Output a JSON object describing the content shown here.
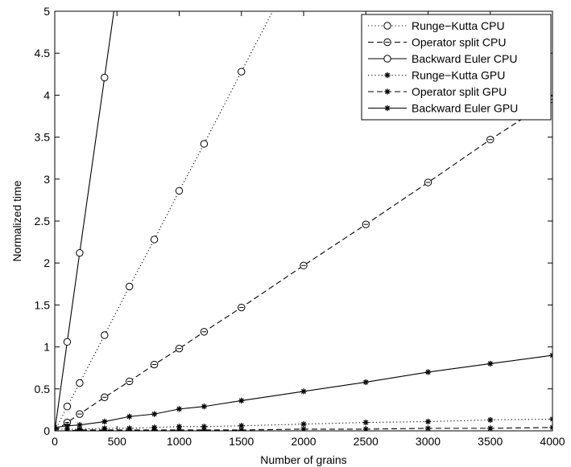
{
  "chart_data": {
    "type": "line",
    "title": "",
    "xlabel": "Number of grains",
    "ylabel": "Normalized time",
    "xlim": [
      0,
      4000
    ],
    "ylim": [
      0,
      5
    ],
    "xticks": [
      0,
      500,
      1000,
      1500,
      2000,
      2500,
      3000,
      3500,
      4000
    ],
    "yticks": [
      0,
      0.5,
      1,
      1.5,
      2,
      2.5,
      3,
      3.5,
      4,
      4.5,
      5
    ],
    "xtick_labels": [
      "0",
      "500",
      "1000",
      "1500",
      "2000",
      "2500",
      "3000",
      "3500",
      "4000"
    ],
    "ytick_labels": [
      "0",
      "0.5",
      "1",
      "1.5",
      "2",
      "2.5",
      "3",
      "3.5",
      "4",
      "4.5",
      "5"
    ],
    "grid": false,
    "legend_position": "top-right",
    "series": [
      {
        "name": "Runge−Kutta CPU",
        "line": "dotted",
        "marker": "circle",
        "x": [
          0,
          100,
          200,
          400,
          600,
          800,
          1000,
          1200,
          1500,
          1800
        ],
        "y": [
          0,
          0.29,
          0.57,
          1.14,
          1.72,
          2.28,
          2.86,
          3.42,
          4.28,
          5.14
        ]
      },
      {
        "name": "Operator split CPU",
        "line": "dashed",
        "marker": "circle-dot",
        "x": [
          0,
          100,
          200,
          400,
          600,
          800,
          1000,
          1200,
          1500,
          2000,
          2500,
          3000,
          3500,
          4000
        ],
        "y": [
          0,
          0.1,
          0.2,
          0.4,
          0.59,
          0.79,
          0.98,
          1.18,
          1.47,
          1.97,
          2.46,
          2.96,
          3.47,
          3.95
        ]
      },
      {
        "name": "Backward Euler CPU",
        "line": "solid",
        "marker": "circle",
        "x": [
          0,
          100,
          200,
          400,
          500
        ],
        "y": [
          0,
          1.06,
          2.12,
          4.21,
          5.26
        ]
      },
      {
        "name": "Runge−Kutta GPU",
        "line": "dotted",
        "marker": "asterisk",
        "x": [
          0,
          100,
          200,
          400,
          600,
          800,
          1000,
          1200,
          1500,
          2000,
          2500,
          3000,
          3500,
          4000
        ],
        "y": [
          0.02,
          0.02,
          0.02,
          0.03,
          0.03,
          0.04,
          0.05,
          0.05,
          0.06,
          0.08,
          0.1,
          0.11,
          0.13,
          0.14
        ]
      },
      {
        "name": "Operator split GPU",
        "line": "dashed",
        "marker": "asterisk",
        "x": [
          0,
          100,
          200,
          400,
          600,
          800,
          1000,
          1200,
          1500,
          2000,
          2500,
          3000,
          3500,
          4000
        ],
        "y": [
          0.0,
          0.0,
          0.01,
          0.01,
          0.01,
          0.01,
          0.01,
          0.01,
          0.01,
          0.02,
          0.02,
          0.03,
          0.03,
          0.04
        ]
      },
      {
        "name": "Backward Euler GPU",
        "line": "solid",
        "marker": "asterisk",
        "x": [
          0,
          100,
          200,
          400,
          600,
          800,
          1000,
          1200,
          1500,
          2000,
          2500,
          3000,
          3500,
          4000
        ],
        "y": [
          0.04,
          0.06,
          0.07,
          0.11,
          0.17,
          0.2,
          0.26,
          0.29,
          0.36,
          0.47,
          0.58,
          0.7,
          0.8,
          0.9
        ]
      }
    ]
  }
}
